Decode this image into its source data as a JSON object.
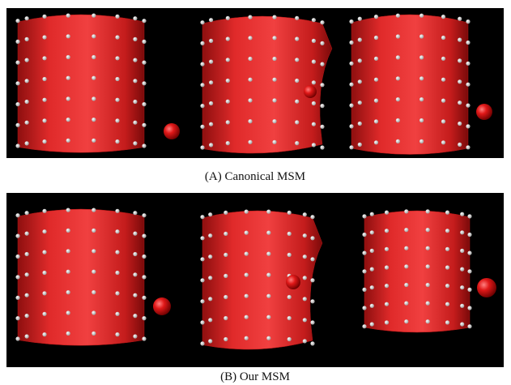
{
  "figure": {
    "panels": [
      {
        "caption": "(A) Canonical MSM"
      },
      {
        "caption": "(B) Our MSM"
      }
    ]
  }
}
